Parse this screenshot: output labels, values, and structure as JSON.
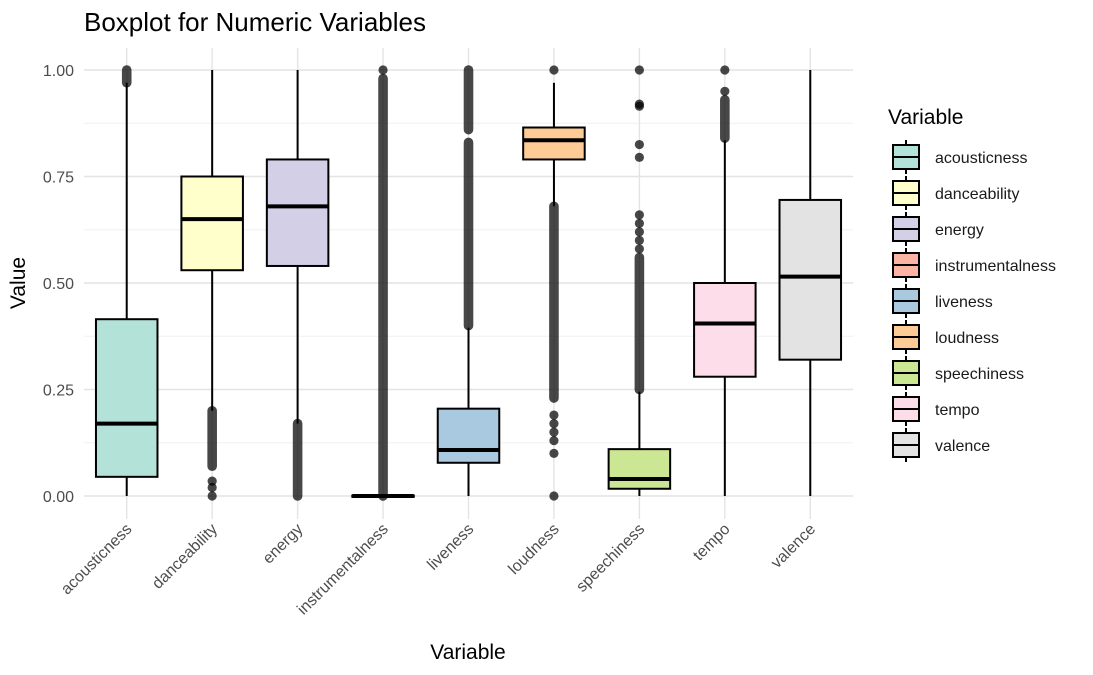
{
  "chart_data": {
    "type": "boxplot",
    "title": "Boxplot for Numeric Variables",
    "xlabel": "Variable",
    "ylabel": "Value",
    "ylim": [
      0,
      1
    ],
    "yticks": [
      "0.00",
      "0.25",
      "0.50",
      "0.75",
      "1.00"
    ],
    "ytick_values": [
      0,
      0.25,
      0.5,
      0.75,
      1.0
    ],
    "grid": true,
    "legend": {
      "title": "Variable",
      "position": "right"
    },
    "categories": [
      "acousticness",
      "danceability",
      "energy",
      "instrumentalness",
      "liveness",
      "loudness",
      "speechiness",
      "tempo",
      "valence"
    ],
    "series": [
      {
        "name": "acousticness",
        "color": "#b3e2d9",
        "min": 0.0,
        "q1": 0.045,
        "median": 0.17,
        "q3": 0.415,
        "max": 0.97,
        "outliers_ranges": [
          [
            0.97,
            1.0
          ]
        ],
        "outliers": []
      },
      {
        "name": "danceability",
        "color": "#ffffcc",
        "min": 0.2,
        "q1": 0.53,
        "median": 0.65,
        "q3": 0.75,
        "max": 1.0,
        "outliers_ranges": [
          [
            0.07,
            0.2
          ]
        ],
        "outliers": [
          0.0,
          0.02,
          0.035
        ]
      },
      {
        "name": "energy",
        "color": "#d2cfe6",
        "min": 0.17,
        "q1": 0.54,
        "median": 0.68,
        "q3": 0.79,
        "max": 1.0,
        "outliers_ranges": [
          [
            0.0,
            0.17
          ]
        ],
        "outliers": []
      },
      {
        "name": "instrumentalness",
        "color": "#fbb4a4",
        "min": 0.0,
        "q1": 0.0,
        "median": 0.0,
        "q3": 0.001,
        "max": 0.003,
        "outliers_ranges": [
          [
            0.0,
            0.98
          ]
        ],
        "outliers": [
          1.0
        ]
      },
      {
        "name": "liveness",
        "color": "#a8c9e0",
        "min": 0.0,
        "q1": 0.078,
        "median": 0.108,
        "q3": 0.205,
        "max": 0.395,
        "outliers_ranges": [
          [
            0.4,
            0.83
          ],
          [
            0.86,
            1.0
          ]
        ],
        "outliers": []
      },
      {
        "name": "loudness",
        "color": "#fdcc96",
        "min": 0.68,
        "q1": 0.79,
        "median": 0.835,
        "q3": 0.865,
        "max": 0.97,
        "outliers_ranges": [
          [
            0.23,
            0.68
          ]
        ],
        "outliers": [
          0.0,
          0.1,
          0.13,
          0.15,
          0.17,
          0.19,
          1.0
        ]
      },
      {
        "name": "speechiness",
        "color": "#cce794",
        "min": 0.0,
        "q1": 0.017,
        "median": 0.04,
        "q3": 0.11,
        "max": 0.245,
        "outliers_ranges": [
          [
            0.25,
            0.56
          ]
        ],
        "outliers": [
          0.58,
          0.6,
          0.62,
          0.64,
          0.66,
          0.795,
          0.825,
          0.915,
          0.92,
          1.0
        ]
      },
      {
        "name": "tempo",
        "color": "#fddde9",
        "min": 0.0,
        "q1": 0.28,
        "median": 0.405,
        "q3": 0.5,
        "max": 0.835,
        "outliers_ranges": [
          [
            0.84,
            0.93
          ]
        ],
        "outliers": [
          0.95,
          1.0
        ]
      },
      {
        "name": "valence",
        "color": "#e3e3e3",
        "min": 0.0,
        "q1": 0.32,
        "median": 0.515,
        "q3": 0.695,
        "max": 1.0,
        "outliers_ranges": [],
        "outliers": []
      }
    ]
  }
}
